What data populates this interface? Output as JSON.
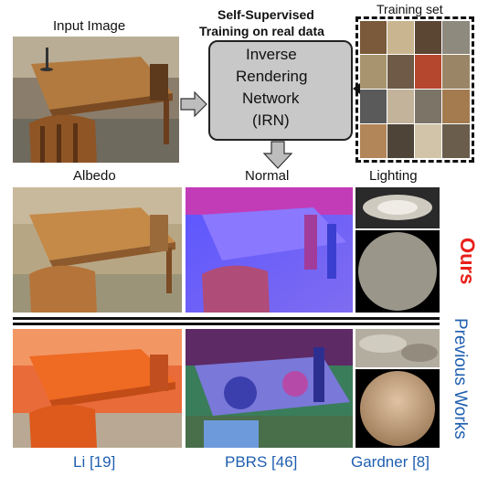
{
  "labels": {
    "input_image": "Input Image",
    "header_line1": "Self-Supervised",
    "header_line2": "Training on real data",
    "training_set": "Training set",
    "irn_line1": "Inverse",
    "irn_line2": "Rendering",
    "irn_line3": "Network",
    "irn_line4": "(IRN)",
    "albedo": "Albedo",
    "normal": "Normal",
    "lighting": "Lighting",
    "ours": "Ours",
    "previous_works": "Previous Works",
    "li": "Li [19]",
    "pbrs": "PBRS [46]",
    "gardner": "Gardner [8]"
  },
  "colors": {
    "ours_red": "#e8201a",
    "previous_blue": "#1f5fb0",
    "irn_box": "#c8c8c8",
    "arrow_gray": "#bdbdbd"
  }
}
